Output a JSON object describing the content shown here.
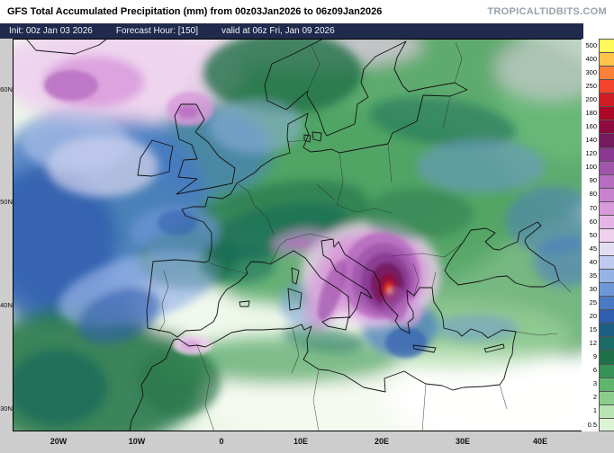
{
  "title_bar": {
    "title": "GFS Total Accumulated Precipitation (mm) from 00z03Jan2026 to 06z09Jan2026",
    "watermark": "TROPICALTIDBITS.COM"
  },
  "info_bar": {
    "init": "Init: 00z Jan 03 2026",
    "forecast_hour": "Forecast Hour: [150]",
    "valid": "valid at 06z Fri, Jan 09 2026"
  },
  "axes": {
    "lat_labels": [
      "60N",
      "50N",
      "40N",
      "30N"
    ],
    "lon_labels": [
      "20W",
      "10W",
      "0",
      "10E",
      "20E",
      "30E",
      "40E"
    ]
  },
  "colorbar": {
    "units": "mm",
    "rows": [
      {
        "label": "500",
        "color": "#FFF95C"
      },
      {
        "label": "400",
        "color": "#FFC24A"
      },
      {
        "label": "300",
        "color": "#FD8139"
      },
      {
        "label": "250",
        "color": "#F4442C"
      },
      {
        "label": "200",
        "color": "#D01C24"
      },
      {
        "label": "180",
        "color": "#AB0726"
      },
      {
        "label": "160",
        "color": "#8E0B3E"
      },
      {
        "label": "140",
        "color": "#741B5E"
      },
      {
        "label": "120",
        "color": "#8A3A92"
      },
      {
        "label": "100",
        "color": "#A156AC"
      },
      {
        "label": "90",
        "color": "#B76DC0"
      },
      {
        "label": "80",
        "color": "#C983CE"
      },
      {
        "label": "70",
        "color": "#D89ADA"
      },
      {
        "label": "60",
        "color": "#E5B5E6"
      },
      {
        "label": "50",
        "color": "#EFD0EF"
      },
      {
        "label": "45",
        "color": "#E3DDF3"
      },
      {
        "label": "40",
        "color": "#BFCBEE"
      },
      {
        "label": "35",
        "color": "#97B3E6"
      },
      {
        "label": "30",
        "color": "#6E97D8"
      },
      {
        "label": "25",
        "color": "#4A7AC4"
      },
      {
        "label": "20",
        "color": "#2F5EAE"
      },
      {
        "label": "15",
        "color": "#1D5F82"
      },
      {
        "label": "12",
        "color": "#1A6B66"
      },
      {
        "label": "9",
        "color": "#1E7049"
      },
      {
        "label": "6",
        "color": "#35935A"
      },
      {
        "label": "3",
        "color": "#5FB56E"
      },
      {
        "label": "2",
        "color": "#8CCD8E"
      },
      {
        "label": "1",
        "color": "#B9E4B4"
      },
      {
        "label": "0.5",
        "color": "#DCF3D5"
      }
    ]
  }
}
